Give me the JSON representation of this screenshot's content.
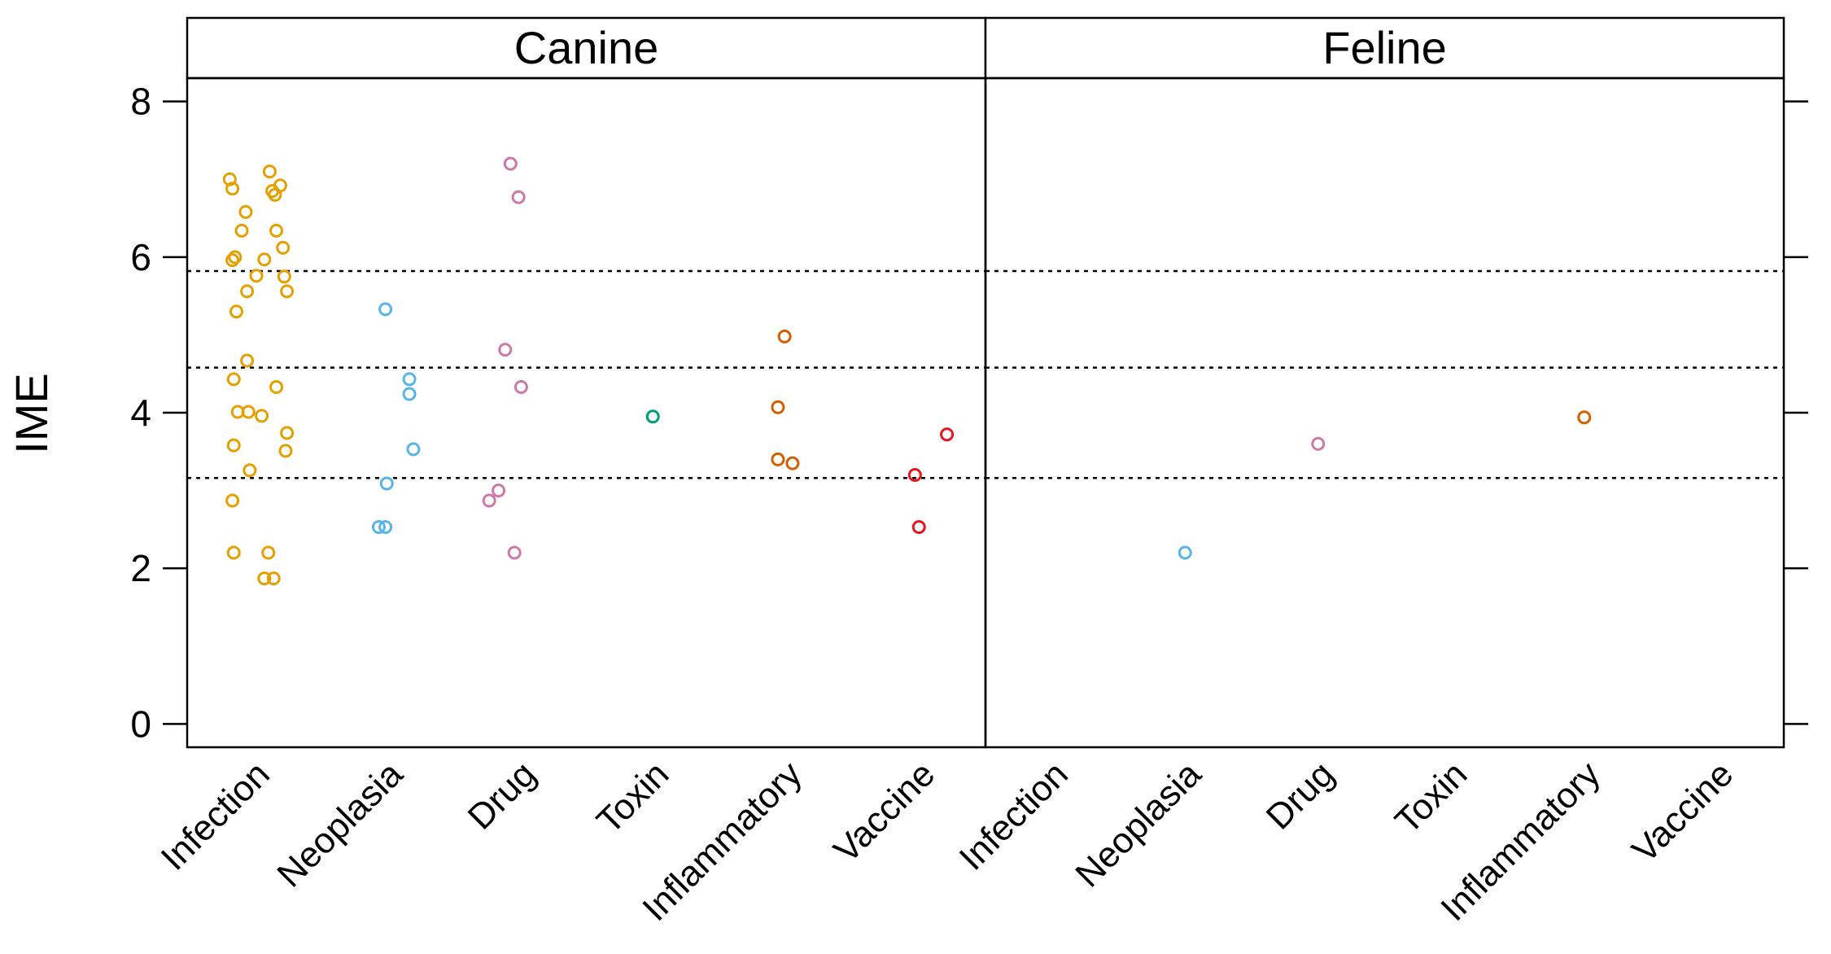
{
  "chart_data": {
    "type": "scatter",
    "ylabel": "IME",
    "xlabel": "",
    "ylim": [
      -0.3,
      8.3
    ],
    "yticks": [
      0,
      2,
      4,
      6,
      8
    ],
    "reference_lines": [
      3.16,
      4.58,
      5.82
    ],
    "reference_line_style": "dotted",
    "grid": false,
    "legend": "none",
    "categories": [
      "Infection",
      "Neoplasia",
      "Drug",
      "Toxin",
      "Inflammatory",
      "Vaccine"
    ],
    "colors": {
      "Infection": "#E69F00",
      "Neoplasia": "#56B4E9",
      "Drug": "#CC79A7",
      "Toxin": "#009E73",
      "Inflammatory": "#D55E00",
      "Vaccine": "#E8141C"
    },
    "panels": [
      {
        "title": "Canine",
        "points": [
          {
            "category": "Infection",
            "jitter": -0.18,
            "y": 7.0
          },
          {
            "category": "Infection",
            "jitter": 0.12,
            "y": 7.1
          },
          {
            "category": "Infection",
            "jitter": -0.16,
            "y": 6.88
          },
          {
            "category": "Infection",
            "jitter": 0.2,
            "y": 6.92
          },
          {
            "category": "Infection",
            "jitter": 0.14,
            "y": 6.85
          },
          {
            "category": "Infection",
            "jitter": 0.16,
            "y": 6.8
          },
          {
            "category": "Infection",
            "jitter": -0.06,
            "y": 6.58
          },
          {
            "category": "Infection",
            "jitter": -0.09,
            "y": 6.34
          },
          {
            "category": "Infection",
            "jitter": 0.17,
            "y": 6.34
          },
          {
            "category": "Infection",
            "jitter": 0.22,
            "y": 6.12
          },
          {
            "category": "Infection",
            "jitter": -0.14,
            "y": 6.0
          },
          {
            "category": "Infection",
            "jitter": -0.16,
            "y": 5.96
          },
          {
            "category": "Infection",
            "jitter": 0.08,
            "y": 5.97
          },
          {
            "category": "Infection",
            "jitter": 0.02,
            "y": 5.76
          },
          {
            "category": "Infection",
            "jitter": 0.23,
            "y": 5.75
          },
          {
            "category": "Infection",
            "jitter": -0.05,
            "y": 5.56
          },
          {
            "category": "Infection",
            "jitter": 0.25,
            "y": 5.56
          },
          {
            "category": "Infection",
            "jitter": -0.13,
            "y": 5.3
          },
          {
            "category": "Infection",
            "jitter": -0.05,
            "y": 4.67
          },
          {
            "category": "Infection",
            "jitter": -0.15,
            "y": 4.43
          },
          {
            "category": "Infection",
            "jitter": 0.17,
            "y": 4.33
          },
          {
            "category": "Infection",
            "jitter": -0.12,
            "y": 4.01
          },
          {
            "category": "Infection",
            "jitter": -0.04,
            "y": 4.01
          },
          {
            "category": "Infection",
            "jitter": 0.06,
            "y": 3.96
          },
          {
            "category": "Infection",
            "jitter": 0.25,
            "y": 3.74
          },
          {
            "category": "Infection",
            "jitter": -0.15,
            "y": 3.58
          },
          {
            "category": "Infection",
            "jitter": 0.24,
            "y": 3.51
          },
          {
            "category": "Infection",
            "jitter": -0.03,
            "y": 3.26
          },
          {
            "category": "Infection",
            "jitter": -0.16,
            "y": 2.87
          },
          {
            "category": "Infection",
            "jitter": -0.15,
            "y": 2.2
          },
          {
            "category": "Infection",
            "jitter": 0.11,
            "y": 2.2
          },
          {
            "category": "Infection",
            "jitter": 0.08,
            "y": 1.87
          },
          {
            "category": "Infection",
            "jitter": 0.15,
            "y": 1.87
          },
          {
            "category": "Neoplasia",
            "jitter": -0.01,
            "y": 5.33
          },
          {
            "category": "Neoplasia",
            "jitter": 0.17,
            "y": 4.43
          },
          {
            "category": "Neoplasia",
            "jitter": 0.17,
            "y": 4.24
          },
          {
            "category": "Neoplasia",
            "jitter": 0.2,
            "y": 3.53
          },
          {
            "category": "Neoplasia",
            "jitter": 0.0,
            "y": 3.09
          },
          {
            "category": "Neoplasia",
            "jitter": -0.06,
            "y": 2.53
          },
          {
            "category": "Neoplasia",
            "jitter": -0.01,
            "y": 2.53
          },
          {
            "category": "Drug",
            "jitter": -0.07,
            "y": 7.2
          },
          {
            "category": "Drug",
            "jitter": -0.01,
            "y": 6.77
          },
          {
            "category": "Drug",
            "jitter": -0.11,
            "y": 4.81
          },
          {
            "category": "Drug",
            "jitter": 0.01,
            "y": 4.33
          },
          {
            "category": "Drug",
            "jitter": -0.16,
            "y": 3.0
          },
          {
            "category": "Drug",
            "jitter": -0.23,
            "y": 2.87
          },
          {
            "category": "Drug",
            "jitter": -0.04,
            "y": 2.2
          },
          {
            "category": "Toxin",
            "jitter": 0.0,
            "y": 3.95
          },
          {
            "category": "Inflammatory",
            "jitter": -0.01,
            "y": 4.98
          },
          {
            "category": "Inflammatory",
            "jitter": -0.06,
            "y": 4.07
          },
          {
            "category": "Inflammatory",
            "jitter": -0.06,
            "y": 3.4
          },
          {
            "category": "Inflammatory",
            "jitter": 0.05,
            "y": 3.35
          },
          {
            "category": "Vaccine",
            "jitter": 0.21,
            "y": 3.72
          },
          {
            "category": "Vaccine",
            "jitter": -0.03,
            "y": 3.2
          },
          {
            "category": "Vaccine",
            "jitter": 0.0,
            "y": 2.53
          }
        ]
      },
      {
        "title": "Feline",
        "points": [
          {
            "category": "Neoplasia",
            "jitter": 0.0,
            "y": 2.2
          },
          {
            "category": "Drug",
            "jitter": 0.0,
            "y": 3.6
          },
          {
            "category": "Inflammatory",
            "jitter": 0.0,
            "y": 3.94
          }
        ]
      }
    ]
  }
}
